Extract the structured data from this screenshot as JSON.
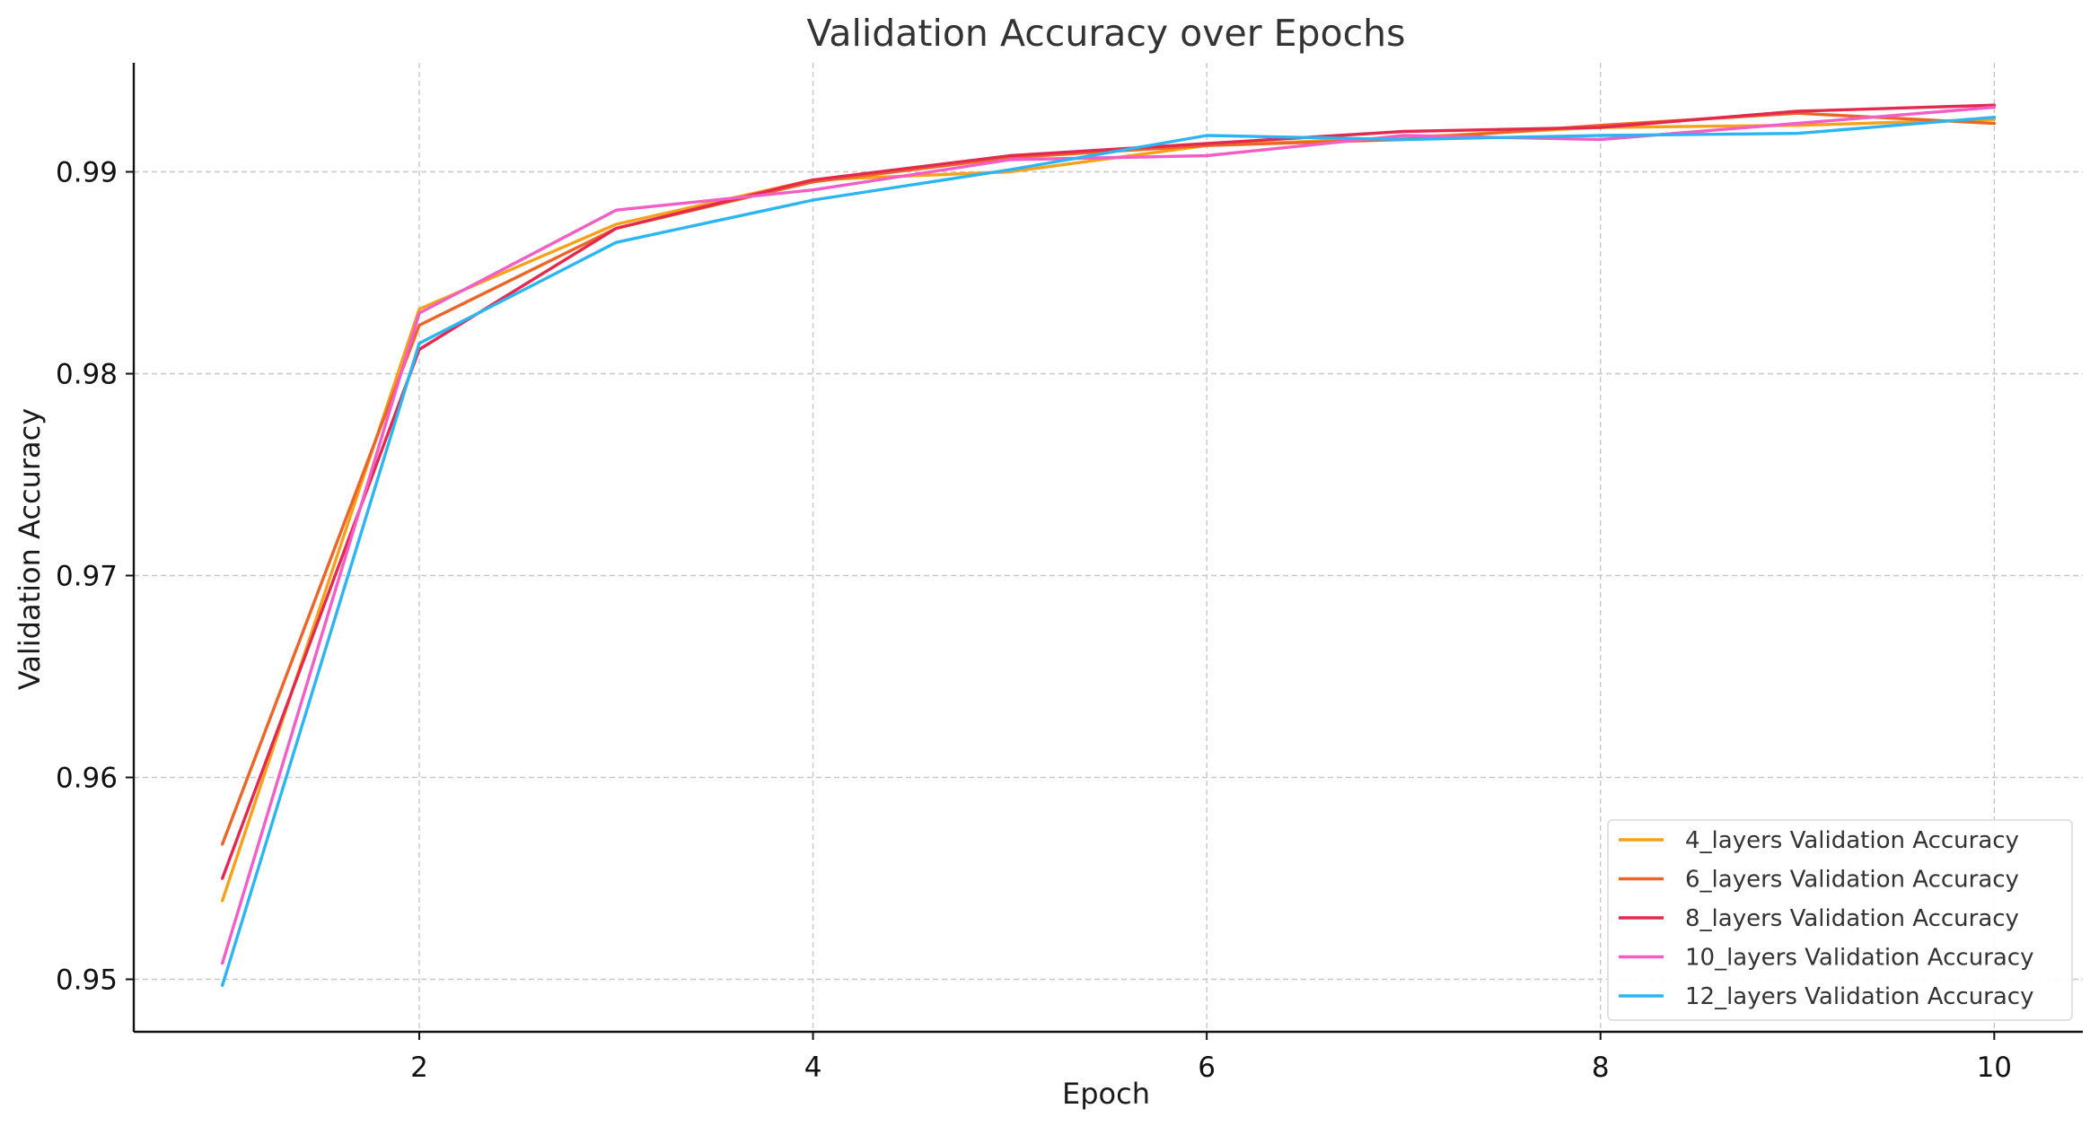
{
  "chart_data": {
    "type": "line",
    "title": "Validation Accuracy over Epochs",
    "xlabel": "Epoch",
    "ylabel": "Validation Accuracy",
    "x": [
      1,
      2,
      3,
      4,
      5,
      6,
      7,
      8,
      9,
      10
    ],
    "xlim": [
      0.55,
      10.45
    ],
    "ylim": [
      0.9474,
      0.9954
    ],
    "xticks": [
      2,
      4,
      6,
      8,
      10
    ],
    "xtick_labels": [
      "2",
      "4",
      "6",
      "8",
      "10"
    ],
    "yticks": [
      0.95,
      0.96,
      0.97,
      0.98,
      0.99
    ],
    "ytick_labels": [
      "0.95",
      "0.96",
      "0.97",
      "0.98",
      "0.99"
    ],
    "grid": true,
    "legend_position": "bottom-right",
    "series": [
      {
        "name": "4_layers Validation Accuracy",
        "color": "#f5a11a",
        "values": [
          0.9539,
          0.9832,
          0.9874,
          0.9896,
          0.99,
          0.9913,
          0.9917,
          0.9922,
          0.9923,
          0.9926
        ]
      },
      {
        "name": "6_layers Validation Accuracy",
        "color": "#ec6527",
        "values": [
          0.9567,
          0.9824,
          0.9872,
          0.9895,
          0.9907,
          0.9913,
          0.9916,
          0.9923,
          0.9929,
          0.9924
        ]
      },
      {
        "name": "8_layers Validation Accuracy",
        "color": "#e4294f",
        "values": [
          0.955,
          0.9812,
          0.9872,
          0.9896,
          0.9908,
          0.9914,
          0.992,
          0.9922,
          0.993,
          0.9933
        ]
      },
      {
        "name": "10_layers Validation Accuracy",
        "color": "#f25ec6",
        "values": [
          0.9508,
          0.983,
          0.9881,
          0.9891,
          0.9906,
          0.9908,
          0.9918,
          0.9916,
          0.9924,
          0.9932
        ]
      },
      {
        "name": "12_layers Validation Accuracy",
        "color": "#2cb5f2",
        "values": [
          0.9497,
          0.9815,
          0.9865,
          0.9886,
          0.9901,
          0.9918,
          0.9916,
          0.9918,
          0.9919,
          0.9927
        ]
      }
    ]
  }
}
